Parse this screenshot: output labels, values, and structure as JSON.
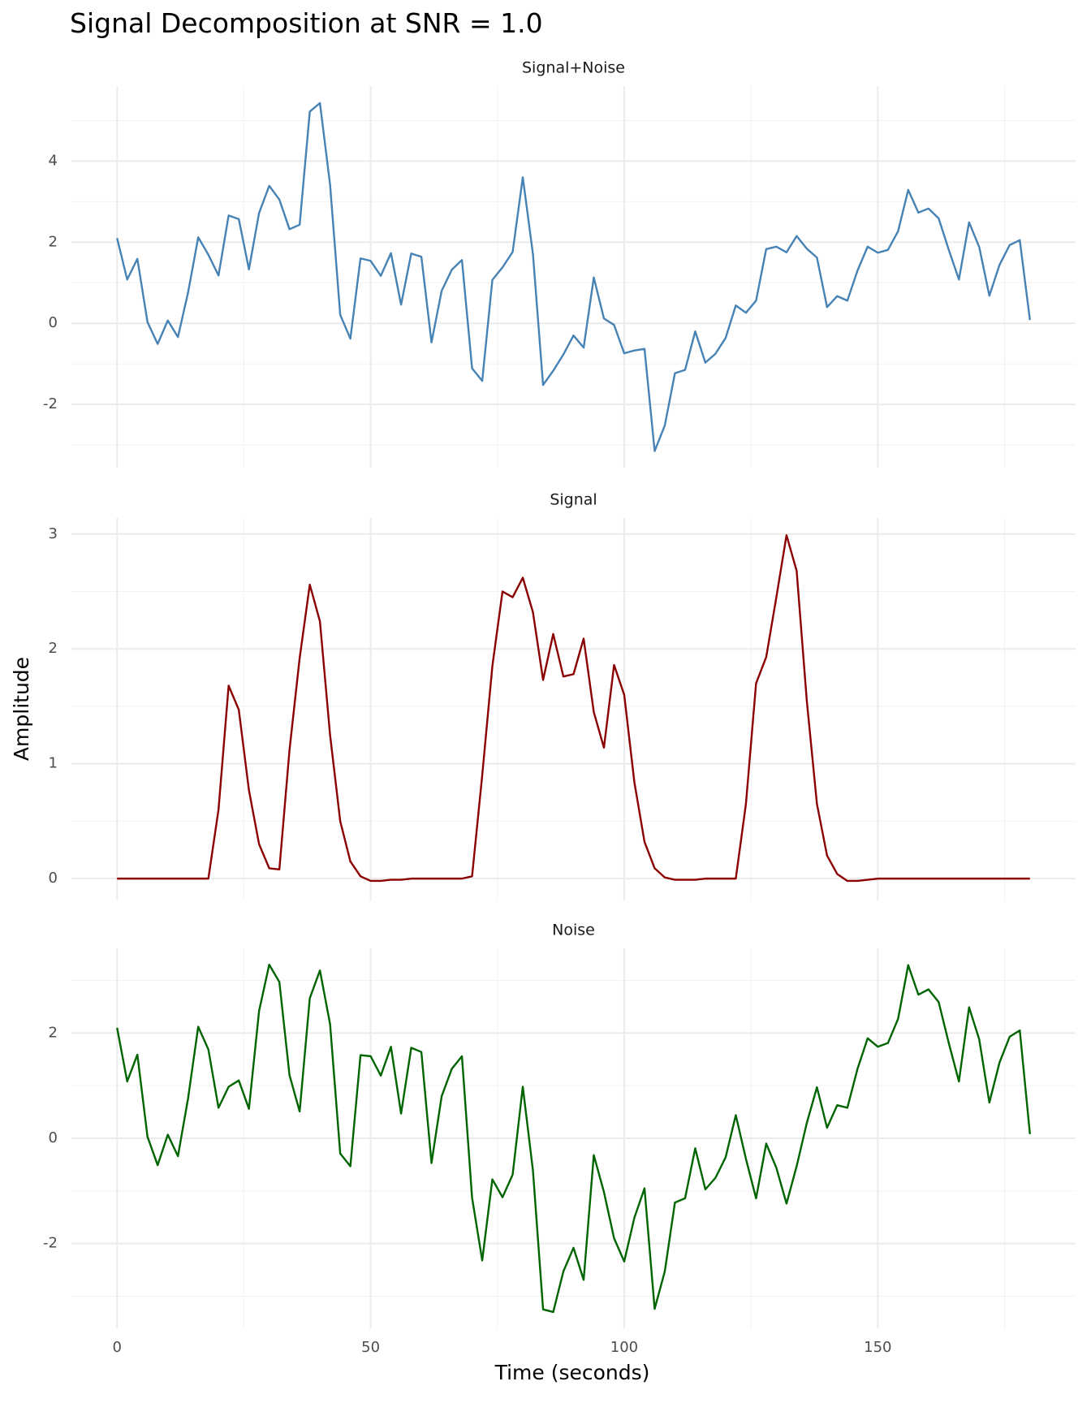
{
  "chart_data": {
    "type": "line",
    "title": "Signal Decomposition at SNR = 1.0",
    "x_label": "Time (seconds)",
    "y_label": "Amplitude",
    "grid": true,
    "x": [
      0,
      2,
      4,
      6,
      8,
      10,
      12,
      14,
      16,
      18,
      20,
      22,
      24,
      26,
      28,
      30,
      32,
      34,
      36,
      38,
      40,
      42,
      44,
      46,
      48,
      50,
      52,
      54,
      56,
      58,
      60,
      62,
      64,
      66,
      68,
      70,
      72,
      74,
      76,
      78,
      80,
      82,
      84,
      86,
      88,
      90,
      92,
      94,
      96,
      98,
      100,
      102,
      104,
      106,
      108,
      110,
      112,
      114,
      116,
      118,
      120,
      122,
      124,
      126,
      128,
      130,
      132,
      134,
      136,
      138,
      140,
      142,
      144,
      146,
      148,
      150,
      152,
      154,
      156,
      158,
      160,
      162,
      164,
      166,
      168,
      170,
      172,
      174,
      176,
      178,
      180
    ],
    "xlim": [
      -9,
      189
    ],
    "xticks": [
      0,
      50,
      100,
      150
    ],
    "xminor": [
      25,
      75,
      125,
      175
    ],
    "panels": [
      {
        "title": "Signal+Noise",
        "color": "#4682b4",
        "values": [
          2.1,
          1.08,
          1.59,
          0.03,
          -0.51,
          0.07,
          -0.34,
          0.76,
          2.12,
          1.69,
          1.18,
          2.66,
          2.57,
          1.33,
          2.72,
          3.39,
          3.05,
          2.32,
          2.43,
          5.22,
          5.43,
          3.42,
          0.21,
          -0.38,
          1.6,
          1.54,
          1.17,
          1.73,
          0.46,
          1.72,
          1.64,
          -0.47,
          0.8,
          1.32,
          1.56,
          -1.11,
          -1.42,
          1.07,
          1.38,
          1.76,
          3.6,
          1.71,
          -1.52,
          -1.17,
          -0.77,
          -0.3,
          -0.6,
          1.13,
          0.12,
          -0.04,
          -0.74,
          -0.67,
          -0.63,
          -3.15,
          -2.52,
          -1.23,
          -1.15,
          -0.2,
          -0.97,
          -0.75,
          -0.36,
          0.44,
          0.26,
          0.56,
          1.83,
          1.89,
          1.75,
          2.15,
          1.84,
          1.62,
          0.4,
          0.67,
          0.56,
          1.3,
          1.89,
          1.74,
          1.81,
          2.27,
          3.29,
          2.73,
          2.83,
          2.59,
          1.81,
          1.08,
          2.49,
          1.88,
          0.68,
          1.44,
          1.93,
          2.05,
          0.08
        ],
        "ylim": [
          -3.56,
          5.85
        ],
        "yticks": [
          -2,
          0,
          2,
          4
        ],
        "yminor": [
          -3,
          -1,
          1,
          3,
          5
        ]
      },
      {
        "title": "Signal",
        "color": "#8b0000",
        "values": [
          0,
          0,
          0,
          0,
          0,
          0,
          0,
          0,
          0,
          0,
          0.6,
          1.68,
          1.47,
          0.77,
          0.3,
          0.09,
          0.08,
          1.12,
          1.92,
          2.56,
          2.24,
          1.25,
          0.5,
          0.15,
          0.02,
          -0.02,
          -0.02,
          -0.01,
          -0.01,
          0,
          0,
          0,
          0,
          0,
          0,
          0.02,
          0.9,
          1.85,
          2.5,
          2.45,
          2.62,
          2.32,
          1.73,
          2.13,
          1.76,
          1.78,
          2.09,
          1.45,
          1.14,
          1.86,
          1.6,
          0.84,
          0.32,
          0.09,
          0.01,
          -0.01,
          -0.01,
          -0.01,
          0,
          0,
          0,
          0,
          0.65,
          1.7,
          1.93,
          2.45,
          2.99,
          2.68,
          1.55,
          0.65,
          0.2,
          0.04,
          -0.02,
          -0.02,
          -0.01,
          0,
          0,
          0,
          0,
          0,
          0,
          0,
          0,
          0,
          0,
          0,
          0,
          0,
          0,
          0,
          0
        ],
        "ylim": [
          -0.19,
          3.14
        ],
        "yticks": [
          0,
          1,
          2,
          3
        ],
        "yminor": [
          0.5,
          1.5,
          2.5
        ]
      },
      {
        "title": "Noise",
        "color": "#006400",
        "values": [
          2.1,
          1.08,
          1.59,
          0.03,
          -0.51,
          0.07,
          -0.34,
          0.76,
          2.12,
          1.69,
          0.58,
          0.98,
          1.1,
          0.56,
          2.42,
          3.3,
          2.97,
          1.2,
          0.51,
          2.66,
          3.19,
          2.17,
          -0.29,
          -0.53,
          1.58,
          1.56,
          1.19,
          1.74,
          0.47,
          1.72,
          1.64,
          -0.47,
          0.8,
          1.32,
          1.56,
          -1.13,
          -2.32,
          -0.78,
          -1.12,
          -0.69,
          0.98,
          -0.61,
          -3.25,
          -3.3,
          -2.53,
          -2.08,
          -2.69,
          -0.32,
          -1.02,
          -1.9,
          -2.34,
          -1.51,
          -0.95,
          -3.24,
          -2.53,
          -1.22,
          -1.14,
          -0.19,
          -0.97,
          -0.75,
          -0.36,
          0.44,
          -0.39,
          -1.14,
          -0.1,
          -0.56,
          -1.24,
          -0.53,
          0.29,
          0.97,
          0.2,
          0.63,
          0.58,
          1.32,
          1.9,
          1.74,
          1.81,
          2.27,
          3.29,
          2.73,
          2.83,
          2.59,
          1.81,
          1.08,
          2.49,
          1.88,
          0.68,
          1.44,
          1.93,
          2.05,
          0.08
        ],
        "ylim": [
          -3.61,
          3.61
        ],
        "yticks": [
          -2,
          0,
          2
        ],
        "yminor": [
          -3,
          -1,
          1,
          3
        ]
      }
    ]
  }
}
